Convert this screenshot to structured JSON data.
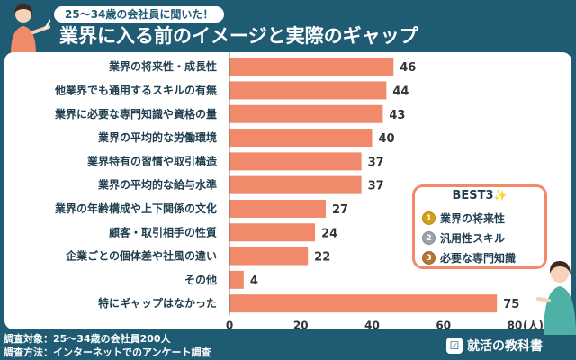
{
  "header": {
    "bubble_text": "25〜34歳の会社員に聞いた！",
    "title": "業界に入る前のイメージと実際のギャップ"
  },
  "chart_data": {
    "type": "bar",
    "orientation": "horizontal",
    "title": "業界に入る前のイメージと実際のギャップ",
    "categories": [
      "業界の将来性・成長性",
      "他業界でも通用するスキルの有無",
      "業界に必要な専門知識や資格の量",
      "業界の平均的な労働環境",
      "業界特有の習慣や取引構造",
      "業界の平均的な給与水準",
      "業界の年齢構成や上下関係の文化",
      "顧客・取引相手の性質",
      "企業ごとの個体差や社風の違い",
      "その他",
      "特にギャップはなかった"
    ],
    "values": [
      46,
      44,
      43,
      40,
      37,
      37,
      27,
      24,
      22,
      4,
      75
    ],
    "xlim": [
      0,
      80
    ],
    "ticks": [
      0,
      20,
      40,
      60,
      80
    ],
    "unit": "(人)",
    "grid": false,
    "bar_color": "#f08a6a"
  },
  "best3": {
    "title": "BEST3",
    "sparkle": "✨",
    "items": [
      {
        "rank": "1",
        "label": "業界の将来性",
        "medal_color": "#d4a017"
      },
      {
        "rank": "2",
        "label": "汎用性スキル",
        "medal_color": "#9aa3a8"
      },
      {
        "rank": "3",
        "label": "必要な専門知識",
        "medal_color": "#b87333"
      }
    ]
  },
  "footer": {
    "subject": "調査対象：25〜34歳の会社員200人",
    "method": "調査方法：インターネットでのアンケート調査",
    "logo_text": "就活の教科書",
    "logo_mark": "☑"
  },
  "colors": {
    "background": "#1f5b73",
    "bar": "#f08a6a",
    "text": "#1f3e4f"
  }
}
